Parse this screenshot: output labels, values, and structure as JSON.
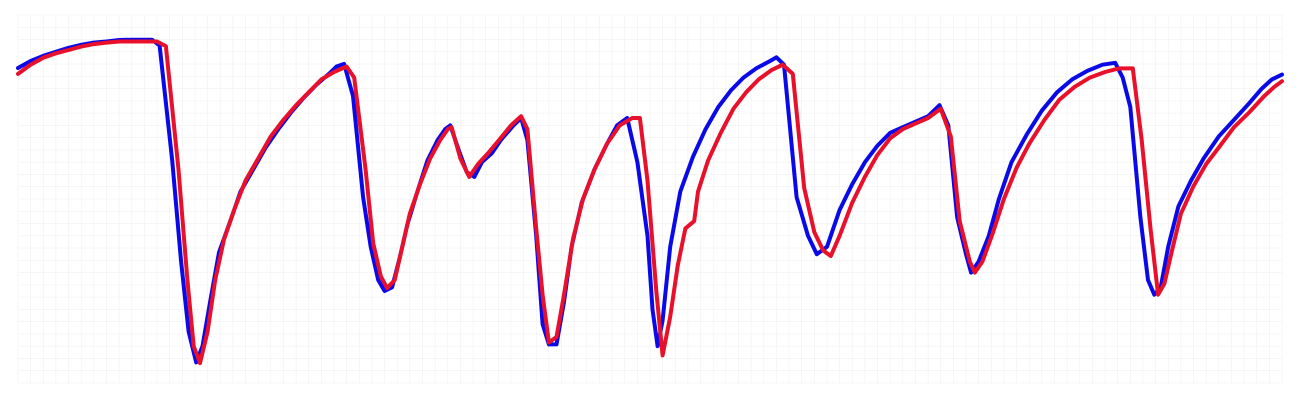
{
  "chart_data": {
    "type": "line",
    "grid": true,
    "legend": "none",
    "xlim": [
      0,
      100
    ],
    "ylim": [
      0,
      100
    ],
    "colors": {
      "background": "#ffffff",
      "grid": "#f0f0f0",
      "series_1": "#0a0ae8",
      "series_2": "#e8102a"
    },
    "series": [
      {
        "color": "#0a0ae8",
        "points": [
          [
            0,
            85.6
          ],
          [
            1,
            87.5
          ],
          [
            2,
            88.9
          ],
          [
            3,
            90.0
          ],
          [
            4,
            91.1
          ],
          [
            5,
            91.9
          ],
          [
            6,
            92.5
          ],
          [
            7,
            92.8
          ],
          [
            8,
            93.2
          ],
          [
            9,
            93.3
          ],
          [
            10,
            93.3
          ],
          [
            10.6,
            93.3
          ],
          [
            11.2,
            91.7
          ],
          [
            12.2,
            60.5
          ],
          [
            12.9,
            33.0
          ],
          [
            13.5,
            14.0
          ],
          [
            14.1,
            5.6
          ],
          [
            14.6,
            10.0
          ],
          [
            15.2,
            22.0
          ],
          [
            15.9,
            35.5
          ],
          [
            16.9,
            45.0
          ],
          [
            17.6,
            52.0
          ],
          [
            18.6,
            58.0
          ],
          [
            19.6,
            64.0
          ],
          [
            20.6,
            69.0
          ],
          [
            21.6,
            73.5
          ],
          [
            22.6,
            77.5
          ],
          [
            23.6,
            81.0
          ],
          [
            24.6,
            84.0
          ],
          [
            25.2,
            86.0
          ],
          [
            25.8,
            86.7
          ],
          [
            26.5,
            78.0
          ],
          [
            27.3,
            50.5
          ],
          [
            27.9,
            37.0
          ],
          [
            28.5,
            28.0
          ],
          [
            29.0,
            25.0
          ],
          [
            29.6,
            26.0
          ],
          [
            30.2,
            34.0
          ],
          [
            30.8,
            43.0
          ],
          [
            31.6,
            52.0
          ],
          [
            32.4,
            60.5
          ],
          [
            33.2,
            66.0
          ],
          [
            33.8,
            69.0
          ],
          [
            34.2,
            70.0
          ],
          [
            34.9,
            63.0
          ],
          [
            35.5,
            57.3
          ],
          [
            36.1,
            56.0
          ],
          [
            36.7,
            60.0
          ],
          [
            37.5,
            62.5
          ],
          [
            38.2,
            66.0
          ],
          [
            39.2,
            70.0
          ],
          [
            39.8,
            72.0
          ],
          [
            40.3,
            66.0
          ],
          [
            41.0,
            40.0
          ],
          [
            41.5,
            16.0
          ],
          [
            42.0,
            10.5
          ],
          [
            42.6,
            10.5
          ],
          [
            43.2,
            22.0
          ],
          [
            43.8,
            37.0
          ],
          [
            44.6,
            49.0
          ],
          [
            45.6,
            58.0
          ],
          [
            46.6,
            65.0
          ],
          [
            47.4,
            70.0
          ],
          [
            48.2,
            72.0
          ],
          [
            49.0,
            60.0
          ],
          [
            49.8,
            40.0
          ],
          [
            50.2,
            20.0
          ],
          [
            50.6,
            10.0
          ],
          [
            51.0,
            17.0
          ],
          [
            51.6,
            37.0
          ],
          [
            52.4,
            52.0
          ],
          [
            53.4,
            61.5
          ],
          [
            54.4,
            69.0
          ],
          [
            55.4,
            75.0
          ],
          [
            56.4,
            79.5
          ],
          [
            57.4,
            83.0
          ],
          [
            58.4,
            85.5
          ],
          [
            59.5,
            87.5
          ],
          [
            60.0,
            88.5
          ],
          [
            60.6,
            86.5
          ],
          [
            61.6,
            50.5
          ],
          [
            62.5,
            40.0
          ],
          [
            63.2,
            35.0
          ],
          [
            64.0,
            37.0
          ],
          [
            65.0,
            47.0
          ],
          [
            66.0,
            54.0
          ],
          [
            67.0,
            60.0
          ],
          [
            68.0,
            64.5
          ],
          [
            69.0,
            68.0
          ],
          [
            70.0,
            69.5
          ],
          [
            71.0,
            71.0
          ],
          [
            72.0,
            72.5
          ],
          [
            72.9,
            75.5
          ],
          [
            73.6,
            70.0
          ],
          [
            74.3,
            45.0
          ],
          [
            75.0,
            35.0
          ],
          [
            75.4,
            30.0
          ],
          [
            76.0,
            33.0
          ],
          [
            76.8,
            40.0
          ],
          [
            77.6,
            50.0
          ],
          [
            78.6,
            60.0
          ],
          [
            79.8,
            67.5
          ],
          [
            81.0,
            74.0
          ],
          [
            82.2,
            79.0
          ],
          [
            83.4,
            82.5
          ],
          [
            84.6,
            84.8
          ],
          [
            85.8,
            86.5
          ],
          [
            86.8,
            87.0
          ],
          [
            87.4,
            83.0
          ],
          [
            88.0,
            75.0
          ],
          [
            88.8,
            45.0
          ],
          [
            89.4,
            28.0
          ],
          [
            89.9,
            24.0
          ],
          [
            90.4,
            26.0
          ],
          [
            91.0,
            37.0
          ],
          [
            91.8,
            48.0
          ],
          [
            92.8,
            55.0
          ],
          [
            93.8,
            61.0
          ],
          [
            95.0,
            67.0
          ],
          [
            96.2,
            71.5
          ],
          [
            97.4,
            76.0
          ],
          [
            98.4,
            80.0
          ],
          [
            99.2,
            82.5
          ],
          [
            100,
            83.8
          ]
        ]
      },
      {
        "color": "#e8102a",
        "points": [
          [
            0,
            84.0
          ],
          [
            1,
            86.5
          ],
          [
            2,
            88.4
          ],
          [
            3,
            89.6
          ],
          [
            4,
            90.5
          ],
          [
            5,
            91.4
          ],
          [
            6,
            92.1
          ],
          [
            7,
            92.5
          ],
          [
            8,
            92.8
          ],
          [
            9,
            92.8
          ],
          [
            10,
            92.8
          ],
          [
            11,
            92.8
          ],
          [
            11.7,
            91.5
          ],
          [
            12.7,
            58.0
          ],
          [
            13.4,
            28.0
          ],
          [
            13.9,
            10.0
          ],
          [
            14.4,
            5.4
          ],
          [
            15.0,
            14.0
          ],
          [
            15.6,
            28.0
          ],
          [
            16.3,
            39.0
          ],
          [
            17.1,
            47.0
          ],
          [
            18.0,
            55.0
          ],
          [
            19.0,
            61.0
          ],
          [
            20.0,
            67.0
          ],
          [
            21.0,
            71.5
          ],
          [
            22.0,
            75.5
          ],
          [
            23.0,
            79.0
          ],
          [
            24.0,
            82.5
          ],
          [
            25.0,
            84.5
          ],
          [
            26.0,
            86.0
          ],
          [
            26.6,
            83.0
          ],
          [
            27.5,
            58.0
          ],
          [
            28.1,
            38.0
          ],
          [
            28.7,
            29.0
          ],
          [
            29.2,
            25.8
          ],
          [
            29.8,
            28.0
          ],
          [
            30.4,
            37.0
          ],
          [
            31.0,
            46.0
          ],
          [
            31.8,
            54.0
          ],
          [
            32.6,
            61.0
          ],
          [
            33.4,
            66.0
          ],
          [
            34.0,
            69.0
          ],
          [
            34.3,
            69.5
          ],
          [
            35.0,
            61.0
          ],
          [
            35.7,
            56.0
          ],
          [
            36.4,
            59.5
          ],
          [
            37.2,
            62.5
          ],
          [
            38.0,
            65.8
          ],
          [
            39.0,
            70.0
          ],
          [
            39.8,
            72.5
          ],
          [
            40.3,
            69.0
          ],
          [
            41.0,
            42.0
          ],
          [
            41.5,
            24.0
          ],
          [
            42.0,
            11.0
          ],
          [
            42.6,
            12.5
          ],
          [
            43.2,
            24.0
          ],
          [
            43.9,
            39.0
          ],
          [
            44.7,
            50.0
          ],
          [
            45.6,
            58.0
          ],
          [
            46.6,
            65.0
          ],
          [
            47.6,
            70.0
          ],
          [
            48.6,
            72.0
          ],
          [
            49.2,
            72.0
          ],
          [
            49.8,
            55.0
          ],
          [
            50.5,
            25.0
          ],
          [
            51.0,
            7.5
          ],
          [
            51.6,
            18.0
          ],
          [
            52.2,
            32.0
          ],
          [
            52.8,
            42.0
          ],
          [
            53.5,
            44.0
          ],
          [
            53.8,
            52.0
          ],
          [
            54.6,
            60.5
          ],
          [
            55.6,
            68.0
          ],
          [
            56.6,
            74.5
          ],
          [
            57.6,
            79.0
          ],
          [
            58.6,
            82.5
          ],
          [
            59.6,
            85.0
          ],
          [
            60.5,
            86.5
          ],
          [
            61.3,
            84.0
          ],
          [
            62.2,
            53.0
          ],
          [
            63.0,
            41.0
          ],
          [
            63.7,
            36.0
          ],
          [
            64.3,
            34.5
          ],
          [
            65.0,
            40.0
          ],
          [
            66.0,
            49.0
          ],
          [
            67.0,
            56.0
          ],
          [
            68.0,
            62.0
          ],
          [
            69.0,
            66.5
          ],
          [
            70.0,
            69.0
          ],
          [
            71.0,
            70.5
          ],
          [
            72.0,
            72.0
          ],
          [
            73.0,
            74.5
          ],
          [
            73.8,
            67.0
          ],
          [
            74.5,
            44.0
          ],
          [
            75.3,
            33.0
          ],
          [
            75.7,
            30.0
          ],
          [
            76.3,
            33.0
          ],
          [
            77.1,
            40.5
          ],
          [
            78.0,
            50.0
          ],
          [
            79.0,
            58.5
          ],
          [
            80.0,
            65.0
          ],
          [
            81.2,
            71.5
          ],
          [
            82.4,
            77.0
          ],
          [
            83.6,
            80.5
          ],
          [
            84.8,
            83.0
          ],
          [
            86.0,
            84.5
          ],
          [
            87.1,
            85.5
          ],
          [
            88.2,
            85.5
          ],
          [
            88.9,
            66.0
          ],
          [
            89.6,
            42.0
          ],
          [
            90.2,
            24.0
          ],
          [
            90.7,
            27.0
          ],
          [
            91.3,
            36.0
          ],
          [
            92.0,
            46.0
          ],
          [
            93.0,
            53.5
          ],
          [
            94.0,
            59.5
          ],
          [
            95.0,
            64.0
          ],
          [
            96.2,
            69.5
          ],
          [
            97.4,
            73.5
          ],
          [
            98.6,
            78.0
          ],
          [
            99.4,
            80.5
          ],
          [
            100,
            82.0
          ]
        ]
      }
    ]
  }
}
